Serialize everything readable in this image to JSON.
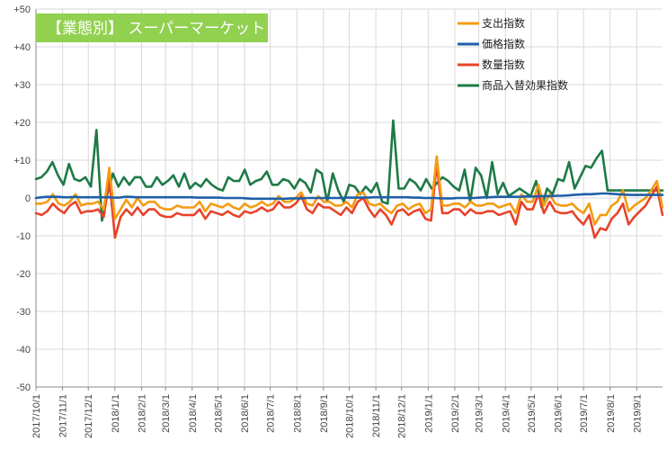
{
  "chart_data": {
    "type": "line",
    "title": "【業態別】 スーパーマーケット",
    "title_bg": "#92D050",
    "ylim": [
      -50,
      50
    ],
    "y_ticks": [
      "+50",
      "+40",
      "+30",
      "+20",
      "+10",
      "0",
      "-10",
      "-20",
      "-30",
      "-40",
      "-50"
    ],
    "y_tick_values": [
      50,
      40,
      30,
      20,
      10,
      0,
      -10,
      -20,
      -30,
      -40,
      -50
    ],
    "x_labels": [
      "2017/10/1",
      "2017/11/1",
      "2017/12/1",
      "2018/1/1",
      "2018/2/1",
      "2018/3/1",
      "2018/4/1",
      "2018/5/1",
      "2018/6/1",
      "2018/7/1",
      "2018/8/1",
      "2018/9/1",
      "2018/10/1",
      "2018/11/1",
      "2018/12/1",
      "2019/1/1",
      "2019/2/1",
      "2019/3/1",
      "2019/4/1",
      "2019/5/1",
      "2019/6/1",
      "2019/7/1",
      "2019/8/1",
      "2019/9/1"
    ],
    "x_range": [
      "2017/10/1",
      "2019/10/1"
    ],
    "grid": true,
    "legend_position": "top-right",
    "series": [
      {
        "name": "支出指数",
        "color": "#F39C12",
        "values": [
          -1.5,
          -1.5,
          -1.0,
          1.0,
          -1.5,
          -2.0,
          -1.0,
          1.0,
          -2.0,
          -1.5,
          -1.5,
          -1.0,
          -3.0,
          8.0,
          -5.5,
          -3.0,
          -0.5,
          -2.5,
          0.0,
          -2.0,
          -1.0,
          -1.0,
          -2.5,
          -3.0,
          -3.0,
          -2.0,
          -2.5,
          -2.5,
          -2.5,
          -1.0,
          -3.5,
          -1.5,
          -2.0,
          -2.5,
          -1.5,
          -2.5,
          -3.0,
          -1.5,
          -2.5,
          -2.0,
          -1.0,
          -2.0,
          -1.5,
          0.5,
          -1.0,
          -1.0,
          0.0,
          1.5,
          -1.5,
          -2.0,
          0.5,
          -1.0,
          -1.0,
          -2.0,
          -2.0,
          -1.0,
          -2.5,
          1.0,
          1.5,
          -1.5,
          -2.0,
          -1.5,
          -3.0,
          -4.0,
          -2.0,
          -1.5,
          -3.0,
          -2.0,
          -1.5,
          -4.0,
          -3.0,
          11.0,
          -2.0,
          -2.0,
          -1.5,
          -1.5,
          -2.5,
          -1.0,
          -2.0,
          -2.0,
          -1.5,
          -1.5,
          -2.5,
          -2.0,
          -1.5,
          -4.0,
          1.0,
          -1.0,
          -1.0,
          3.5,
          -2.0,
          1.0,
          -1.5,
          -2.0,
          -2.0,
          -1.5,
          -3.0,
          -4.0,
          -1.5,
          -7.0,
          -4.5,
          -4.5,
          -2.0,
          -1.0,
          2.0,
          -3.5,
          -2.0,
          -1.0,
          0.0,
          2.0,
          4.5,
          -2.5
        ],
        "dash": false
      },
      {
        "name": "価格指数",
        "color": "#1F5FA8",
        "values": [
          0.0,
          0.2,
          0.3,
          0.3,
          0.3,
          0.2,
          0.2,
          0.3,
          0.2,
          0.2,
          0.2,
          0.2,
          0.2,
          0.2,
          0.1,
          0.1,
          0.3,
          0.3,
          0.2,
          0.2,
          0.2,
          0.2,
          0.2,
          0.2,
          0.2,
          0.2,
          0.2,
          0.2,
          0.2,
          0.1,
          0.1,
          0.1,
          0.1,
          0.1,
          0.0,
          0.0,
          0.0,
          0.0,
          -0.1,
          -0.2,
          -0.2,
          -0.2,
          -0.2,
          -0.2,
          -0.2,
          -0.2,
          -0.1,
          -0.1,
          -0.1,
          0.0,
          0.0,
          0.0,
          0.0,
          0.0,
          0.0,
          0.0,
          0.1,
          0.1,
          0.1,
          0.1,
          0.1,
          0.2,
          0.2,
          0.2,
          0.2,
          0.2,
          0.2,
          0.2,
          0.1,
          0.1,
          0.0,
          0.0,
          0.0,
          -0.1,
          -0.1,
          -0.1,
          0.0,
          0.0,
          0.0,
          0.0,
          0.1,
          0.2,
          0.2,
          0.3,
          0.3,
          0.3,
          0.3,
          0.3,
          0.4,
          0.4,
          0.4,
          0.5,
          0.5,
          0.5,
          0.6,
          0.6,
          0.7,
          0.8,
          0.9,
          1.0,
          1.0,
          1.1,
          1.2,
          1.2,
          1.1,
          1.0,
          0.9,
          0.8,
          0.8,
          0.8,
          0.8,
          0.8,
          0.8,
          0.8
        ],
        "dash": false
      },
      {
        "name": "数量指数",
        "color": "#E8432B",
        "values": [
          -4.0,
          -4.5,
          -3.5,
          -1.5,
          -3.0,
          -4.0,
          -2.0,
          -1.0,
          -4.0,
          -3.5,
          -3.5,
          -3.0,
          -5.0,
          5.0,
          -10.5,
          -5.0,
          -3.0,
          -4.5,
          -2.5,
          -4.5,
          -3.0,
          -3.0,
          -4.5,
          -5.0,
          -5.0,
          -4.0,
          -4.5,
          -4.5,
          -4.5,
          -3.0,
          -5.5,
          -3.5,
          -4.0,
          -4.5,
          -3.5,
          -4.5,
          -5.0,
          -3.5,
          -4.0,
          -3.5,
          -2.5,
          -3.5,
          -3.0,
          -1.0,
          -2.5,
          -2.5,
          -1.5,
          0.5,
          -3.0,
          -4.0,
          -1.5,
          -2.5,
          -2.5,
          -3.5,
          -4.5,
          -2.5,
          -4.0,
          -1.0,
          0.0,
          -3.0,
          -5.0,
          -3.0,
          -4.5,
          -7.0,
          -3.5,
          -3.0,
          -4.5,
          -3.5,
          -3.0,
          -5.5,
          -6.0,
          9.0,
          -4.0,
          -4.0,
          -3.0,
          -3.0,
          -4.5,
          -3.0,
          -4.0,
          -4.0,
          -3.5,
          -3.5,
          -4.5,
          -4.0,
          -3.5,
          -7.0,
          -1.0,
          -3.0,
          -3.0,
          1.0,
          -4.0,
          -1.0,
          -3.5,
          -4.0,
          -4.0,
          -3.5,
          -5.5,
          -7.0,
          -4.5,
          -10.5,
          -8.0,
          -8.5,
          -5.5,
          -4.0,
          -1.5,
          -7.0,
          -5.0,
          -3.5,
          -2.0,
          0.5,
          3.0,
          -4.5
        ],
        "dash": false
      },
      {
        "name": "商品入替効果指数",
        "color": "#1E7A46",
        "values": [
          5.0,
          5.5,
          7.0,
          9.5,
          6.0,
          3.5,
          9.0,
          5.0,
          4.5,
          5.5,
          3.0,
          18.0,
          -6.0,
          1.0,
          6.5,
          3.0,
          5.5,
          3.5,
          5.5,
          5.5,
          3.0,
          3.0,
          5.5,
          3.5,
          4.5,
          6.0,
          3.0,
          6.5,
          2.5,
          4.0,
          3.0,
          5.0,
          3.5,
          2.5,
          2.0,
          5.5,
          4.5,
          4.5,
          7.5,
          3.5,
          4.5,
          5.0,
          7.0,
          3.5,
          3.5,
          5.0,
          4.5,
          2.5,
          5.0,
          4.0,
          1.5,
          7.5,
          6.5,
          -1.0,
          6.5,
          2.0,
          -1.0,
          3.5,
          3.0,
          1.0,
          3.0,
          1.5,
          4.0,
          -1.0,
          -1.5,
          20.5,
          2.5,
          2.5,
          5.0,
          4.0,
          2.0,
          5.0,
          2.5,
          4.0,
          5.5,
          4.5,
          3.0,
          2.0,
          7.5,
          -1.0,
          8.0,
          6.0,
          0.0,
          9.5,
          1.0,
          4.0,
          0.5,
          1.5,
          2.5,
          1.5,
          0.5,
          4.5,
          -2.5,
          2.5,
          1.0,
          5.0,
          4.5,
          9.5,
          2.5,
          5.5,
          8.5,
          8.0,
          10.5,
          12.5,
          2.0,
          2.0,
          2.0,
          2.0,
          2.0,
          2.0,
          2.0,
          2.0,
          2.0,
          2.0,
          2.0
        ],
        "dash": false
      }
    ]
  }
}
